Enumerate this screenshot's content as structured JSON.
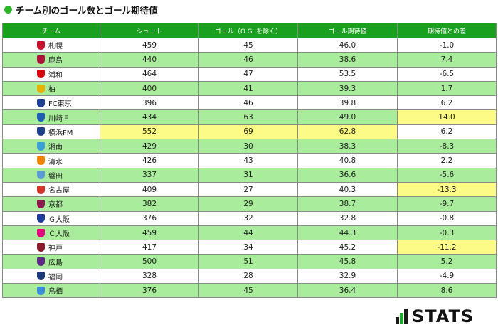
{
  "title": "チーム別のゴール数とゴール期待値",
  "columns": [
    "チーム",
    "シュート",
    "ゴール（O.G. を除く）",
    "ゴール期待値",
    "期待値との差"
  ],
  "highlight_color": "#fbfb86",
  "rows": [
    {
      "team": "札幌",
      "shots": "459",
      "goals": "45",
      "xg": "46.0",
      "diff": "-1.0",
      "crest": "#c8102e",
      "hl": []
    },
    {
      "team": "鹿島",
      "shots": "440",
      "goals": "46",
      "xg": "38.6",
      "diff": "7.4",
      "crest": "#b0133a",
      "hl": []
    },
    {
      "team": "浦和",
      "shots": "464",
      "goals": "47",
      "xg": "53.5",
      "diff": "-6.5",
      "crest": "#d7000f",
      "hl": []
    },
    {
      "team": "柏",
      "shots": "400",
      "goals": "41",
      "xg": "39.3",
      "diff": "1.7",
      "crest": "#e8b200",
      "hl": []
    },
    {
      "team": "FC東京",
      "shots": "396",
      "goals": "46",
      "xg": "39.8",
      "diff": "6.2",
      "crest": "#1c3f94",
      "hl": []
    },
    {
      "team": "川崎Ｆ",
      "shots": "434",
      "goals": "63",
      "xg": "49.0",
      "diff": "14.0",
      "crest": "#1e5fb4",
      "hl": [
        "diff"
      ]
    },
    {
      "team": "横浜FM",
      "shots": "552",
      "goals": "69",
      "xg": "62.8",
      "diff": "6.2",
      "crest": "#1d3f8c",
      "hl": [
        "shots",
        "goals",
        "xg"
      ]
    },
    {
      "team": "湘南",
      "shots": "429",
      "goals": "30",
      "xg": "38.3",
      "diff": "-8.3",
      "crest": "#3aa0d8",
      "hl": []
    },
    {
      "team": "清水",
      "shots": "426",
      "goals": "43",
      "xg": "40.8",
      "diff": "2.2",
      "crest": "#f08300",
      "hl": []
    },
    {
      "team": "磐田",
      "shots": "337",
      "goals": "31",
      "xg": "36.6",
      "diff": "-5.6",
      "crest": "#5b9bd5",
      "hl": []
    },
    {
      "team": "名古屋",
      "shots": "409",
      "goals": "27",
      "xg": "40.3",
      "diff": "-13.3",
      "crest": "#d2342a",
      "hl": [
        "diff"
      ]
    },
    {
      "team": "京都",
      "shots": "382",
      "goals": "29",
      "xg": "38.7",
      "diff": "-9.7",
      "crest": "#8a1a4a",
      "hl": []
    },
    {
      "team": "Ｇ大阪",
      "shots": "376",
      "goals": "32",
      "xg": "32.8",
      "diff": "-0.8",
      "crest": "#1e3c9c",
      "hl": []
    },
    {
      "team": "Ｃ大阪",
      "shots": "459",
      "goals": "44",
      "xg": "44.3",
      "diff": "-0.3",
      "crest": "#e6007e",
      "hl": []
    },
    {
      "team": "神戸",
      "shots": "417",
      "goals": "34",
      "xg": "45.2",
      "diff": "-11.2",
      "crest": "#8b1a2b",
      "hl": [
        "diff"
      ]
    },
    {
      "team": "広島",
      "shots": "500",
      "goals": "51",
      "xg": "45.8",
      "diff": "5.2",
      "crest": "#5e2a84",
      "hl": []
    },
    {
      "team": "福岡",
      "shots": "328",
      "goals": "28",
      "xg": "32.9",
      "diff": "-4.9",
      "crest": "#1a3a78",
      "hl": []
    },
    {
      "team": "鳥栖",
      "shots": "376",
      "goals": "45",
      "xg": "36.4",
      "diff": "8.6",
      "crest": "#3c8dd6",
      "hl": []
    }
  ],
  "logo": "STATS"
}
